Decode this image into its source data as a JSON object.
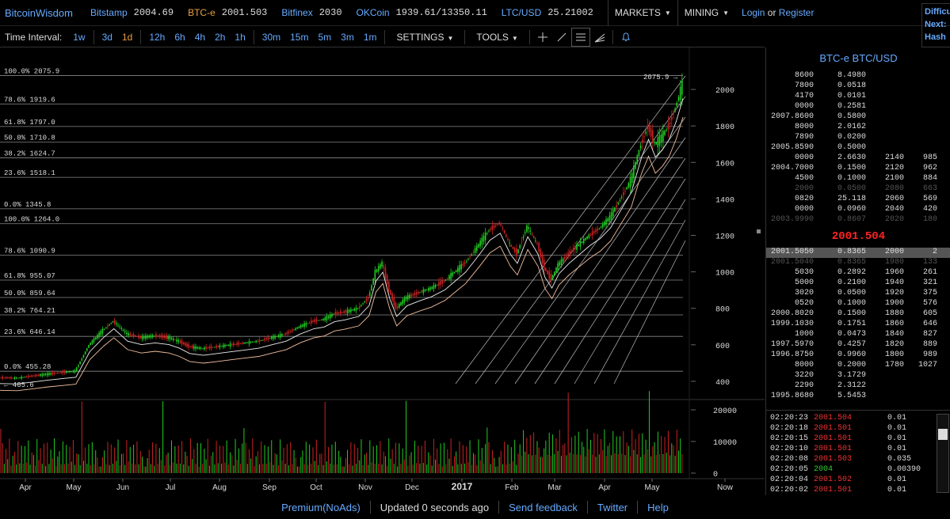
{
  "header": {
    "logo": "BitcoinWisdom",
    "tickers": [
      {
        "exchange": "Bitstamp",
        "price": "2004.69",
        "active": false
      },
      {
        "exchange": "BTC-e",
        "price": "2001.503",
        "active": true
      },
      {
        "exchange": "Bitfinex",
        "price": "2030",
        "active": false
      },
      {
        "exchange": "OKCoin",
        "price": "1939.61/13350.11",
        "active": false
      },
      {
        "exchange": "LTC/USD",
        "price": "25.21002",
        "active": false
      }
    ],
    "markets_label": "MARKETS",
    "mining_label": "MINING",
    "login_label": "Login",
    "or_label": "or",
    "register_label": "Register",
    "difficulty_lines": [
      "Difficu",
      "Next:",
      "Hash"
    ]
  },
  "toolbar": {
    "time_interval_label": "Time Interval:",
    "intervals": [
      "1w",
      "3d",
      "1d",
      "12h",
      "6h",
      "4h",
      "2h",
      "1h",
      "30m",
      "15m",
      "5m",
      "3m",
      "1m"
    ],
    "active_interval": "1d",
    "settings_label": "SETTINGS",
    "tools_label": "TOOLS",
    "tool_icons": [
      "crosshair-icon",
      "line-draw-icon",
      "horizontal-lines-icon",
      "fibonacci-fan-icon",
      "bell-icon"
    ]
  },
  "chart_data": {
    "type": "candlestick",
    "x_ticks": [
      "Apr",
      "May",
      "Jun",
      "Jul",
      "Aug",
      "Sep",
      "Oct",
      "Nov",
      "Dec",
      "2017",
      "Feb",
      "Mar",
      "Apr",
      "May",
      "Now"
    ],
    "y_ticks": [
      400,
      600,
      800,
      1000,
      1200,
      1400,
      1600,
      1800,
      2000
    ],
    "volume_ticks": [
      0,
      10000,
      20000
    ],
    "last_price_label": "2075.9 →",
    "low_label": "← 405.6",
    "fib_levels": [
      {
        "label": "100.0% 2075.9",
        "value": 2075.9
      },
      {
        "label": "78.6% 1919.6",
        "value": 1919.6
      },
      {
        "label": "61.8% 1797.0",
        "value": 1797.0
      },
      {
        "label": "50.0% 1710.8",
        "value": 1710.8
      },
      {
        "label": "38.2% 1624.7",
        "value": 1624.7
      },
      {
        "label": "23.6% 1518.1",
        "value": 1518.1
      },
      {
        "label": "0.0% 1345.8",
        "value": 1345.8
      },
      {
        "label": "100.0% 1264.0",
        "value": 1264.0
      },
      {
        "label": "78.6% 1090.9",
        "value": 1090.9
      },
      {
        "label": "61.8% 955.07",
        "value": 955.07
      },
      {
        "label": "50.0% 859.64",
        "value": 859.64
      },
      {
        "label": "38.2% 764.21",
        "value": 764.21
      },
      {
        "label": "23.6% 646.14",
        "value": 646.14
      },
      {
        "label": "0.0% 455.28",
        "value": 455.28
      }
    ],
    "price_path": [
      [
        0,
        420
      ],
      [
        10,
        418
      ],
      [
        20,
        430
      ],
      [
        28,
        440
      ],
      [
        36,
        448
      ],
      [
        44,
        456
      ],
      [
        52,
        600
      ],
      [
        60,
        680
      ],
      [
        66,
        730
      ],
      [
        74,
        660
      ],
      [
        82,
        640
      ],
      [
        90,
        650
      ],
      [
        98,
        640
      ],
      [
        104,
        620
      ],
      [
        110,
        590
      ],
      [
        118,
        580
      ],
      [
        126,
        590
      ],
      [
        134,
        600
      ],
      [
        142,
        610
      ],
      [
        150,
        620
      ],
      [
        158,
        640
      ],
      [
        166,
        660
      ],
      [
        174,
        700
      ],
      [
        182,
        730
      ],
      [
        188,
        740
      ],
      [
        194,
        770
      ],
      [
        200,
        780
      ],
      [
        208,
        800
      ],
      [
        214,
        860
      ],
      [
        218,
        1000
      ],
      [
        222,
        1050
      ],
      [
        226,
        900
      ],
      [
        230,
        800
      ],
      [
        236,
        860
      ],
      [
        244,
        890
      ],
      [
        250,
        910
      ],
      [
        258,
        950
      ],
      [
        264,
        1000
      ],
      [
        270,
        1050
      ],
      [
        278,
        1150
      ],
      [
        284,
        1230
      ],
      [
        290,
        1270
      ],
      [
        296,
        1150
      ],
      [
        300,
        1100
      ],
      [
        306,
        1250
      ],
      [
        312,
        1150
      ],
      [
        316,
        1020
      ],
      [
        320,
        960
      ],
      [
        324,
        1040
      ],
      [
        330,
        1100
      ],
      [
        336,
        1150
      ],
      [
        342,
        1200
      ],
      [
        348,
        1240
      ],
      [
        354,
        1300
      ],
      [
        360,
        1400
      ],
      [
        366,
        1500
      ],
      [
        372,
        1700
      ],
      [
        376,
        1800
      ],
      [
        380,
        1700
      ],
      [
        384,
        1740
      ],
      [
        388,
        1800
      ],
      [
        392,
        1900
      ],
      [
        396,
        2030
      ]
    ]
  },
  "orderbook": {
    "title": "BTC-e BTC/USD",
    "asks": [
      {
        "price": "8600",
        "amount": "8.4980",
        "cum_price": "",
        "cum_amount": ""
      },
      {
        "price": "7800",
        "amount": "0.0518",
        "cum_price": "",
        "cum_amount": ""
      },
      {
        "price": "4170",
        "amount": "0.0101",
        "cum_price": "",
        "cum_amount": ""
      },
      {
        "price": "0000",
        "amount": "0.2581",
        "cum_price": "",
        "cum_amount": ""
      },
      {
        "price": "2007.8600",
        "amount": "0.5800",
        "cum_price": "",
        "cum_amount": ""
      },
      {
        "price": "8000",
        "amount": "2.0162",
        "cum_price": "",
        "cum_amount": ""
      },
      {
        "price": "7890",
        "amount": "0.0200",
        "cum_price": "",
        "cum_amount": ""
      },
      {
        "price": "2005.8590",
        "amount": "0.5000",
        "cum_price": "",
        "cum_amount": ""
      },
      {
        "price": "0000",
        "amount": "2.6630",
        "cum_price": "2140",
        "cum_amount": "985"
      },
      {
        "price": "2004.7000",
        "amount": "0.1500",
        "cum_price": "2120",
        "cum_amount": "962"
      },
      {
        "price": "4500",
        "amount": "0.1000",
        "cum_price": "2100",
        "cum_amount": "884"
      },
      {
        "price": "2000",
        "amount": "0.0500",
        "cum_price": "2080",
        "cum_amount": "663",
        "dim": true
      },
      {
        "price": "0820",
        "amount": "25.118",
        "cum_price": "2060",
        "cum_amount": "569"
      },
      {
        "price": "0000",
        "amount": "0.0960",
        "cum_price": "2040",
        "cum_amount": "420"
      },
      {
        "price": "2003.9990",
        "amount": "0.8607",
        "cum_price": "2020",
        "cum_amount": "180",
        "dim": true
      }
    ],
    "last_price": "2001.504",
    "bids": [
      {
        "price": "2001.5050",
        "amount": "0.8365",
        "cum_price": "2000",
        "cum_amount": "2",
        "hl": true
      },
      {
        "price": "2001.5040",
        "amount": "0.8365",
        "cum_price": "1980",
        "cum_amount": "133",
        "dim": true
      },
      {
        "price": "5030",
        "amount": "0.2892",
        "cum_price": "1960",
        "cum_amount": "261"
      },
      {
        "price": "5000",
        "amount": "0.2100",
        "cum_price": "1940",
        "cum_amount": "321"
      },
      {
        "price": "3020",
        "amount": "0.0500",
        "cum_price": "1920",
        "cum_amount": "375"
      },
      {
        "price": "0520",
        "amount": "0.1000",
        "cum_price": "1900",
        "cum_amount": "576"
      },
      {
        "price": "2000.8020",
        "amount": "0.1500",
        "cum_price": "1880",
        "cum_amount": "605"
      },
      {
        "price": "1999.1030",
        "amount": "0.1751",
        "cum_price": "1860",
        "cum_amount": "646"
      },
      {
        "price": "1000",
        "amount": "0.0473",
        "cum_price": "1840",
        "cum_amount": "827"
      },
      {
        "price": "1997.5970",
        "amount": "0.4257",
        "cum_price": "1820",
        "cum_amount": "889"
      },
      {
        "price": "1996.8750",
        "amount": "0.9960",
        "cum_price": "1800",
        "cum_amount": "989"
      },
      {
        "price": "8000",
        "amount": "0.2000",
        "cum_price": "1780",
        "cum_amount": "1027"
      },
      {
        "price": "3220",
        "amount": "3.1729",
        "cum_price": "",
        "cum_amount": ""
      },
      {
        "price": "2290",
        "amount": "2.3122",
        "cum_price": "",
        "cum_amount": ""
      },
      {
        "price": "1995.8680",
        "amount": "5.5453",
        "cum_price": "",
        "cum_amount": ""
      }
    ]
  },
  "trades": [
    {
      "time": "02:20:23",
      "price": "2001.504",
      "qty": "0.01",
      "up": false
    },
    {
      "time": "02:20:18",
      "price": "2001.501",
      "qty": "0.01",
      "up": false
    },
    {
      "time": "02:20:15",
      "price": "2001.501",
      "qty": "0.01",
      "up": false
    },
    {
      "time": "02:20:10",
      "price": "2001.501",
      "qty": "0.01",
      "up": false
    },
    {
      "time": "02:20:08",
      "price": "2001.503",
      "qty": "0.035",
      "up": false
    },
    {
      "time": "02:20:05",
      "price": "2004",
      "qty": "0.00390",
      "up": true
    },
    {
      "time": "02:20:04",
      "price": "2001.502",
      "qty": "0.01",
      "up": false
    },
    {
      "time": "02:20:02",
      "price": "2001.501",
      "qty": "0.01",
      "up": false
    }
  ],
  "footer": {
    "premium_label": "Premium(NoAds)",
    "status_text": "Updated 0 seconds ago",
    "feedback_label": "Send feedback",
    "twitter_label": "Twitter",
    "help_label": "Help"
  }
}
